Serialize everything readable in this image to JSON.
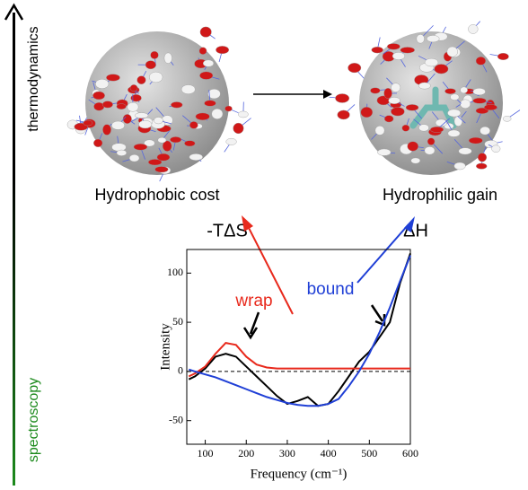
{
  "labels": {
    "left_top": "thermodynamics",
    "left_bottom": "spectroscopy",
    "cost": "Hydrophobic cost",
    "gain": "Hydrophilic gain",
    "entropy": "-TΔS",
    "enthalpy": "ΔH"
  },
  "chart_data": {
    "type": "line",
    "x": [
      60,
      75,
      100,
      125,
      150,
      175,
      200,
      225,
      250,
      275,
      300,
      325,
      350,
      375,
      400,
      425,
      450,
      475,
      500,
      525,
      550,
      575,
      600
    ],
    "series": [
      {
        "color": "#000000",
        "values": [
          -8,
          -5,
          3,
          15,
          18,
          15,
          5,
          -5,
          -15,
          -25,
          -33,
          -30,
          -26,
          -35,
          -33,
          -20,
          -5,
          10,
          20,
          35,
          50,
          90,
          120
        ]
      },
      {
        "name": "wrap",
        "color": "#e8291c",
        "values": [
          -5,
          -2,
          5,
          18,
          29,
          27,
          15,
          7,
          4,
          3,
          3,
          3,
          3,
          3,
          3,
          3,
          3,
          3,
          3,
          3,
          3,
          3,
          3
        ]
      },
      {
        "name": "bound",
        "color": "#1f3fd6",
        "values": [
          2,
          0,
          -3,
          -6,
          -10,
          -14,
          -18,
          -22,
          -26,
          -29,
          -32,
          -34,
          -35,
          -35,
          -33,
          -28,
          -15,
          0,
          18,
          40,
          65,
          92,
          118
        ]
      }
    ],
    "hline": 0,
    "xlabel": "Frequency (cm⁻¹)",
    "ylabel": "Intensity",
    "xlim": [
      55,
      600
    ],
    "ylim": [
      -74,
      124
    ],
    "xticks": [
      100,
      200,
      300,
      400,
      500,
      600
    ],
    "yticks": [
      -50,
      0,
      50,
      100
    ]
  }
}
